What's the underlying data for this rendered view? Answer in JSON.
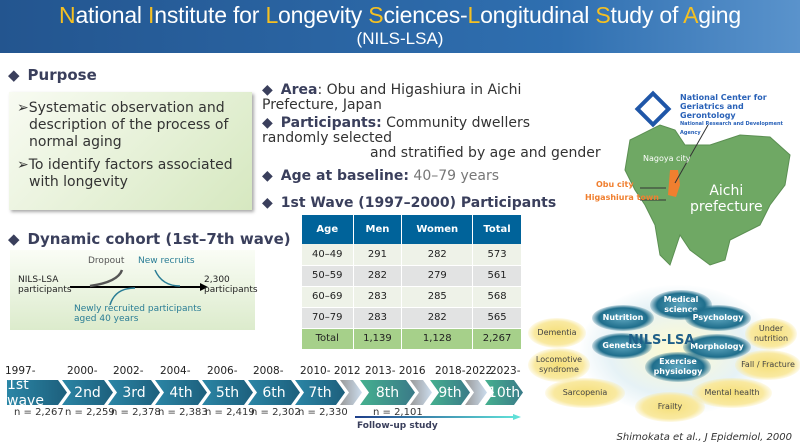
{
  "header": {
    "title_parts": [
      {
        "cap": "N",
        "rest": "ational "
      },
      {
        "cap": "I",
        "rest": "nstitute for "
      },
      {
        "cap": "L",
        "rest": "ongevity "
      },
      {
        "cap": "S",
        "rest": "ciences-"
      },
      {
        "cap": "L",
        "rest": "ongitudinal "
      },
      {
        "cap": "S",
        "rest": "tudy of "
      },
      {
        "cap": "A",
        "rest": "ging"
      }
    ],
    "subtitle": "(NILS-LSA)"
  },
  "purpose": {
    "heading": "Purpose",
    "items": [
      "Systematic observation and description of the process of normal aging",
      "To identify factors associated with longevity"
    ]
  },
  "cohort": {
    "heading": "Dynamic cohort (1st–7th wave)",
    "dropout": "Dropout",
    "new_recruits": "New recruits",
    "start": "NILS-LSA participants",
    "end": "2,300 participants",
    "newly": "Newly recruited participants aged 40 years"
  },
  "info": {
    "area_label": "Area",
    "area_text": ": Obu and Higashiura in Aichi Prefecture, Japan",
    "participants_label": "Participants:",
    "participants_text1": " Community dwellers randomly selected",
    "participants_text2": "and stratified by age and gender",
    "age_label": "Age at baseline:",
    "age_text": " 40–79 years",
    "wave_heading": "1st Wave (1997–2000) Participants"
  },
  "table": {
    "headers": [
      "Age",
      "Men",
      "Women",
      "Total"
    ],
    "rows": [
      [
        "40–49",
        "291",
        "282",
        "573"
      ],
      [
        "50–59",
        "282",
        "279",
        "561"
      ],
      [
        "60–69",
        "283",
        "285",
        "568"
      ],
      [
        "70–79",
        "283",
        "282",
        "565"
      ]
    ],
    "total": [
      "Total",
      "1,139",
      "1,128",
      "2,267"
    ]
  },
  "map": {
    "org1": "National Center for",
    "org2": "Geriatrics and Gerontology",
    "org3": "National Research and Development Agency",
    "nagoya": "Nagoya city",
    "obu": "Obu city",
    "higashiura": "Higashiura town",
    "aichi1": "Aichi",
    "aichi2": "prefecture"
  },
  "bubbles": {
    "center": "NILS-LSA",
    "inner": [
      "Medical science",
      "Nutrition",
      "Psychology",
      "Genetics",
      "Morphology",
      "Exercise physiology"
    ],
    "outer": [
      "Dementia",
      "Locomotive syndrome",
      "Sarcopenia",
      "Frailty",
      "Mental health",
      "Fall / Fracture",
      "Under nutrition"
    ]
  },
  "timeline": {
    "waves": [
      {
        "label": "1st wave",
        "year": "1997-",
        "n": "n = 2,267"
      },
      {
        "label": "2nd",
        "year": "2000-",
        "n": "n = 2,259"
      },
      {
        "label": "3rd",
        "year": "2002-",
        "n": "n = 2,378"
      },
      {
        "label": "4th",
        "year": "2004-",
        "n": "n = 2,383"
      },
      {
        "label": "5th",
        "year": "2006-",
        "n": "n = 2,419"
      },
      {
        "label": "6th",
        "year": "2008-",
        "n": "n = 2,302"
      },
      {
        "label": "7th",
        "year": "2010- 2012",
        "n": "n = 2,330"
      },
      {
        "label": "8th",
        "year": "2013- 2016",
        "n": "n =  2,101"
      },
      {
        "label": "9th",
        "year": "2018-2022",
        "n": ""
      },
      {
        "label": "10th",
        "year": "2023-",
        "n": ""
      }
    ],
    "followup": "Follow-up study"
  },
  "citation": "Shimokata et al., J Epidemiol, 2000",
  "colors": {
    "header": "#2a62a0",
    "accent": "#f5c022",
    "table_header": "#00639a",
    "total_row": "#a6d08a",
    "wave_teal": "#1f7090",
    "wave_green": "#3fa88a",
    "map_green": "#6fa864",
    "highlight": "#f07f2f"
  }
}
